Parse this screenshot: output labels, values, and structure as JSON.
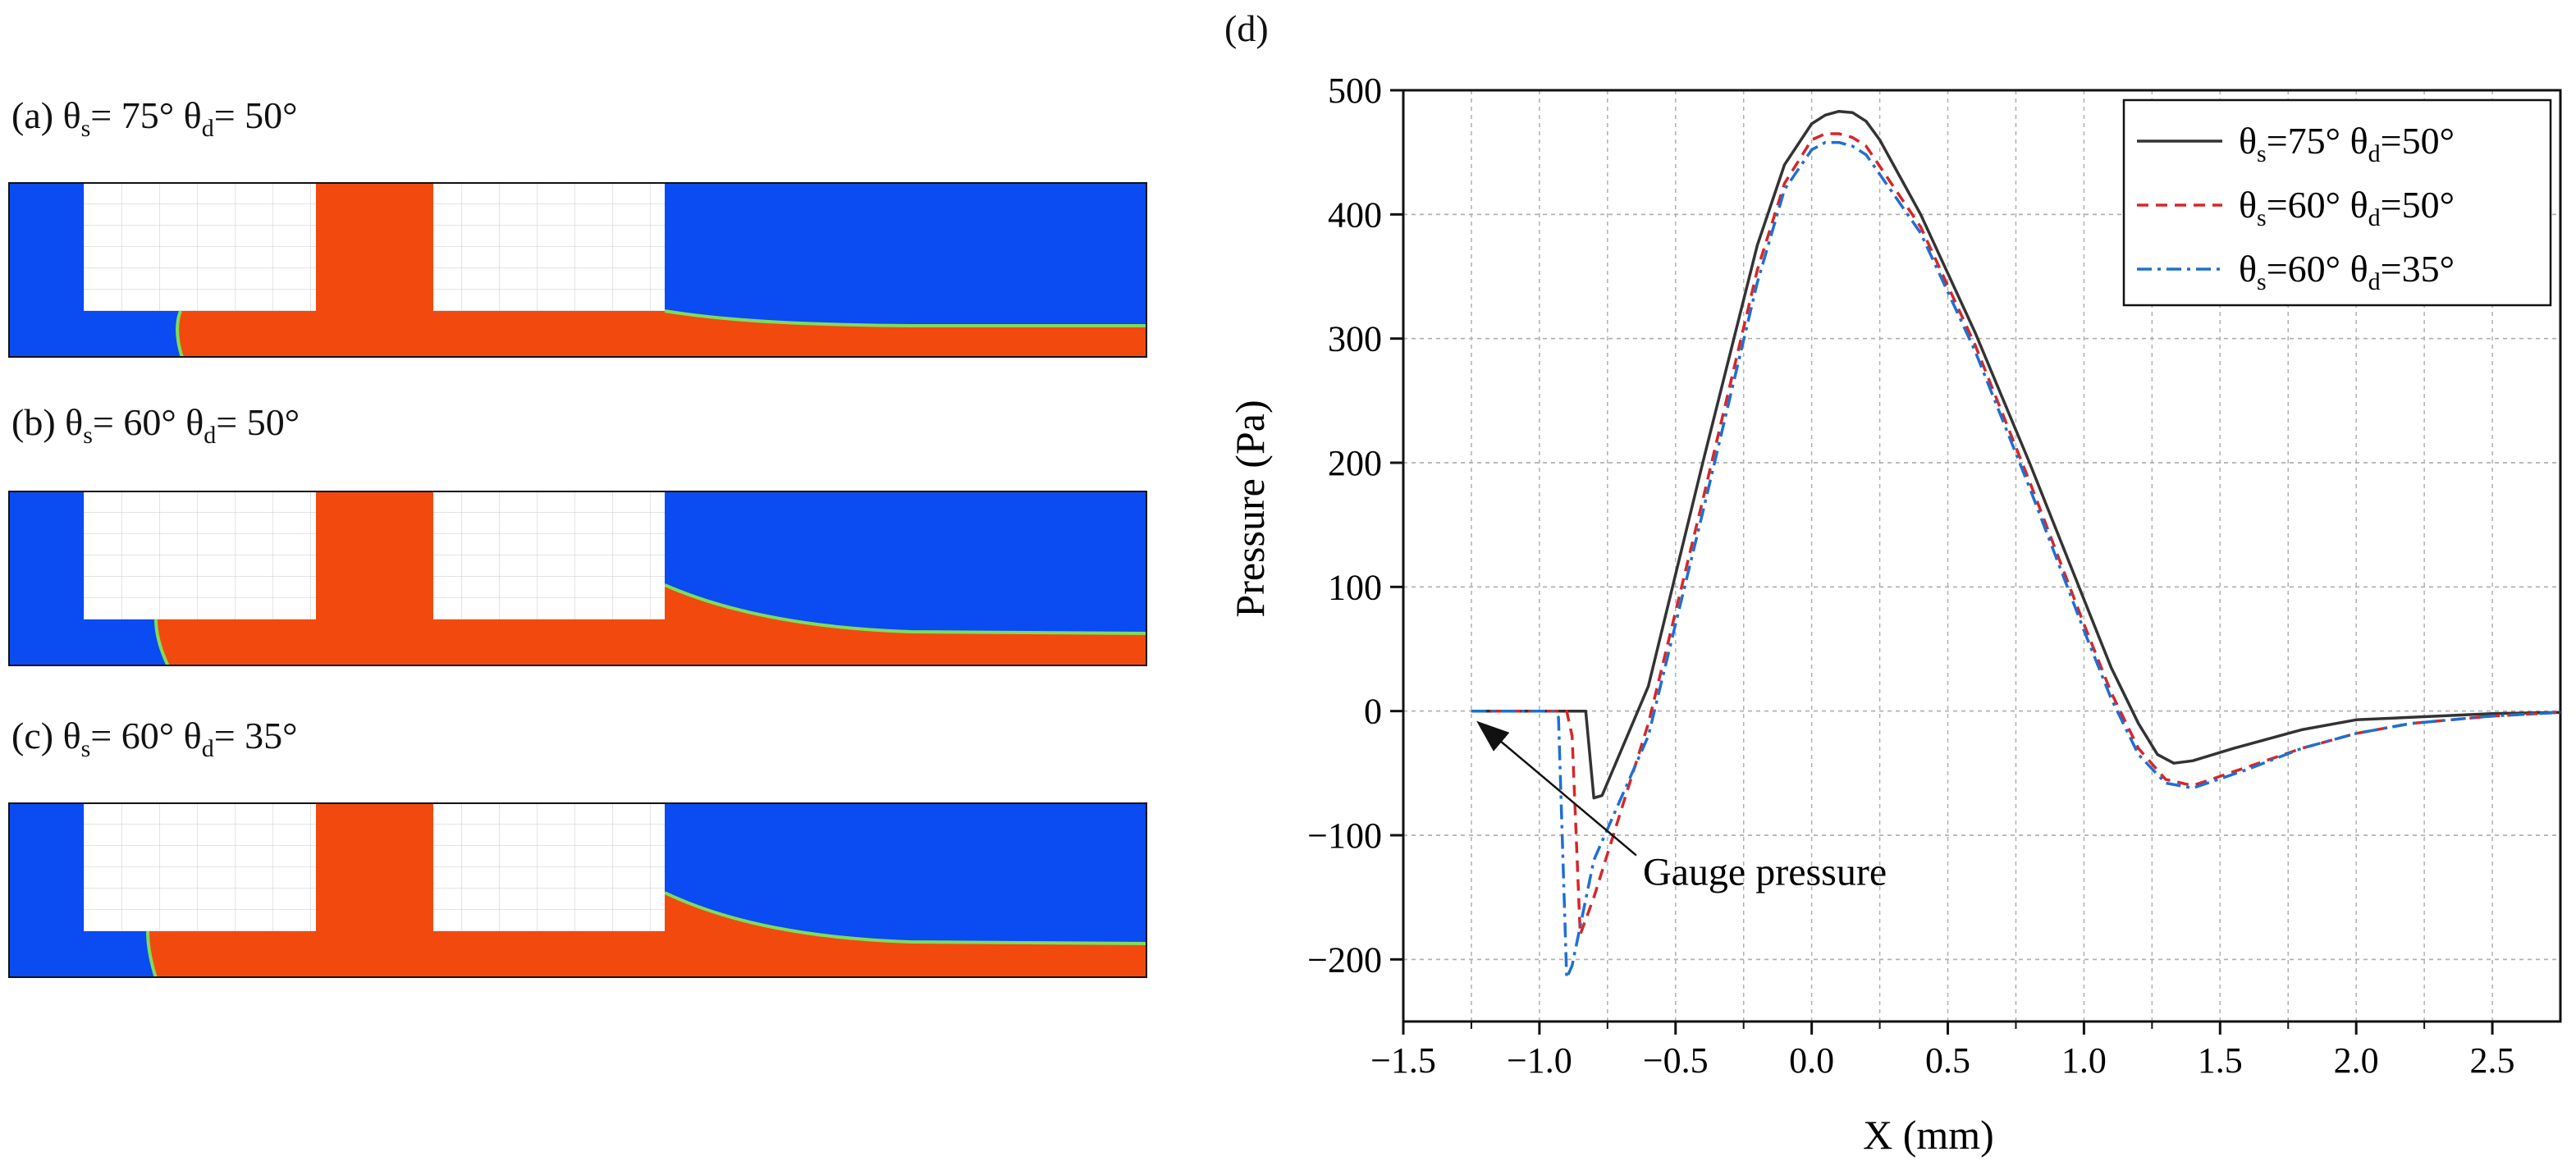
{
  "panels": [
    {
      "label_prefix": "(a) ",
      "s1": "s",
      "v1": "= 75°",
      "s2": "d",
      "v2": "= 50°"
    },
    {
      "label_prefix": "(b)  ",
      "s1": "s",
      "v1": "= 60°",
      "s2": "d",
      "v2": "= 50°"
    },
    {
      "label_prefix": "(c) ",
      "s1": "s",
      "v1": "= 60°",
      "s2": "d",
      "v2": "= 35°"
    }
  ],
  "theta_symbol": "θ",
  "panel_d_label": "(d)",
  "colors": {
    "sim_blue": "#0a4bf2",
    "sim_orange": "#f24a0e",
    "sim_interface": "#7fdc5a",
    "grid": "#b0b0b0"
  },
  "chart_data": {
    "type": "line",
    "xlabel": "X (mm)",
    "ylabel": "Pressure (Pa)",
    "xlim": [
      -1.5,
      2.75
    ],
    "ylim": [
      -250,
      500
    ],
    "xticks": [
      -1.5,
      -1.0,
      -0.5,
      0.0,
      0.5,
      1.0,
      1.5,
      2.0,
      2.5
    ],
    "xtick_labels": [
      "−1.5",
      "−1.0",
      "−0.5",
      "0.0",
      "0.5",
      "1.0",
      "1.5",
      "2.0",
      "2.5"
    ],
    "yticks": [
      -200,
      -100,
      0,
      100,
      200,
      300,
      400,
      500
    ],
    "ytick_labels": [
      "−200",
      "−100",
      "0",
      "100",
      "200",
      "300",
      "400",
      "500"
    ],
    "grid": true,
    "legend_position": "top-right",
    "annotation": {
      "text": "Gauge pressure",
      "arrow_to": [
        -1.22,
        -10
      ],
      "text_at": [
        -0.62,
        -140
      ]
    },
    "series": [
      {
        "name": "θs=75° θd=50°",
        "legend_sub1": "s",
        "legend_v1": "=75° ",
        "legend_sub2": "d",
        "legend_v2": "=50°",
        "color": "#333333",
        "dash": "",
        "x": [
          -1.25,
          -0.9,
          -0.83,
          -0.8,
          -0.77,
          -0.6,
          -0.4,
          -0.2,
          -0.1,
          0.0,
          0.05,
          0.1,
          0.15,
          0.2,
          0.25,
          0.4,
          0.6,
          0.8,
          1.0,
          1.1,
          1.2,
          1.27,
          1.33,
          1.4,
          1.55,
          1.8,
          2.0,
          2.3,
          2.5,
          2.75
        ],
        "y": [
          0,
          0,
          0,
          -70,
          -68,
          20,
          200,
          375,
          440,
          473,
          480,
          483,
          482,
          475,
          460,
          400,
          305,
          200,
          90,
          35,
          -10,
          -35,
          -42,
          -40,
          -30,
          -15,
          -7,
          -4,
          -2,
          -1
        ]
      },
      {
        "name": "θs=60° θd=50°",
        "legend_sub1": "s",
        "legend_v1": "=60° ",
        "legend_sub2": "d",
        "legend_v2": "=50°",
        "color": "#d62728",
        "dash": "14,9",
        "x": [
          -1.25,
          -0.9,
          -0.88,
          -0.85,
          -0.8,
          -0.6,
          -0.4,
          -0.2,
          -0.1,
          0.0,
          0.05,
          0.1,
          0.15,
          0.2,
          0.4,
          0.6,
          0.8,
          1.0,
          1.1,
          1.2,
          1.3,
          1.4,
          1.6,
          1.8,
          2.0,
          2.2,
          2.5,
          2.75
        ],
        "y": [
          0,
          0,
          -20,
          -180,
          -150,
          -10,
          170,
          355,
          425,
          460,
          465,
          465,
          462,
          455,
          390,
          295,
          185,
          70,
          15,
          -30,
          -55,
          -60,
          -45,
          -30,
          -18,
          -10,
          -4,
          -1
        ]
      },
      {
        "name": "θs=60° θd=35°",
        "legend_sub1": "s",
        "legend_v1": "=60° ",
        "legend_sub2": "d",
        "legend_v2": "=35°",
        "color": "#1f6fd1",
        "dash": "18,7,4,7",
        "x": [
          -1.25,
          -0.95,
          -0.93,
          -0.9,
          -0.88,
          -0.8,
          -0.6,
          -0.4,
          -0.2,
          -0.1,
          0.0,
          0.05,
          0.1,
          0.15,
          0.2,
          0.4,
          0.6,
          0.8,
          1.0,
          1.1,
          1.2,
          1.3,
          1.4,
          1.6,
          1.8,
          2.0,
          2.2,
          2.5,
          2.75
        ],
        "y": [
          0,
          0,
          -5,
          -215,
          -205,
          -120,
          -20,
          160,
          345,
          420,
          452,
          458,
          458,
          455,
          448,
          385,
          290,
          180,
          65,
          10,
          -35,
          -58,
          -62,
          -47,
          -30,
          -18,
          -10,
          -4,
          -1
        ]
      }
    ]
  }
}
